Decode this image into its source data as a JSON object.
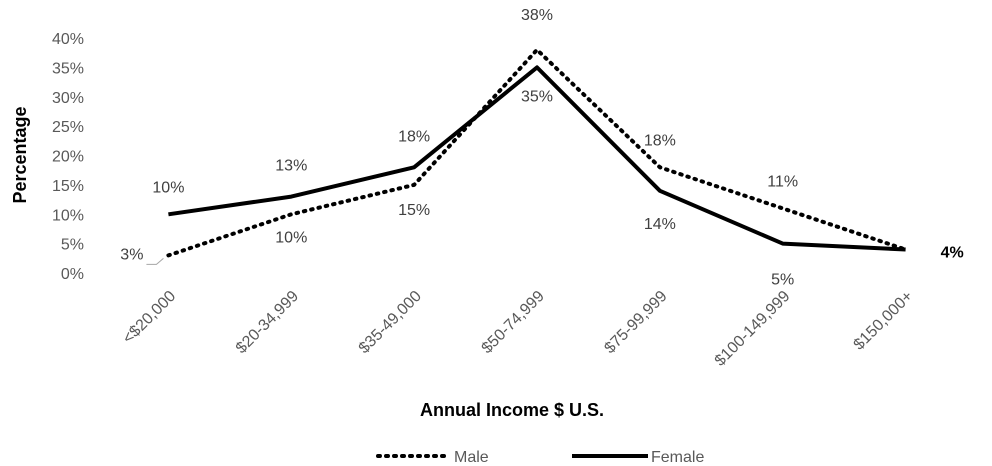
{
  "chart_data": {
    "type": "line",
    "categories": [
      "<$20,000",
      "$20-34,999",
      "$35-49,000",
      "$50-74,999",
      "$75-99,999",
      "$100-149,999",
      "$150,000+"
    ],
    "series": [
      {
        "name": "Male",
        "values": [
          3,
          10,
          15,
          38,
          18,
          11,
          4
        ],
        "style": "dotted",
        "color": "#000000",
        "labels": [
          "3%",
          "10%",
          "15%",
          "38%",
          "18%",
          "11%",
          "4%"
        ]
      },
      {
        "name": "Female",
        "values": [
          10,
          13,
          18,
          35,
          14,
          5,
          4
        ],
        "style": "solid",
        "color": "#000000",
        "labels": [
          "10%",
          "13%",
          "18%",
          "35%",
          "14%",
          "5%",
          "4%"
        ]
      }
    ],
    "yticks": [
      "0%",
      "5%",
      "10%",
      "15%",
      "20%",
      "25%",
      "30%",
      "35%",
      "40%"
    ],
    "ylim": [
      0,
      40
    ],
    "xlabel": "Annual Income $ U.S.",
    "ylabel": "Percentage",
    "legend_position": "bottom",
    "grid": false
  }
}
